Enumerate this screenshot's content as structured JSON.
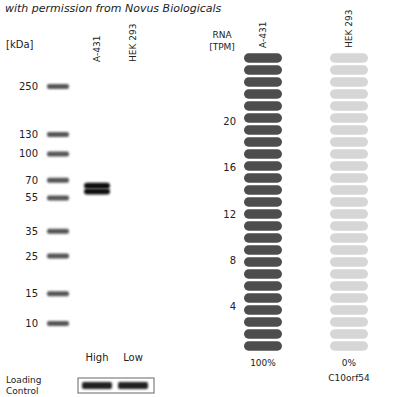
{
  "watermark": "with permission from Novus Biologicals",
  "western_blot": {
    "unit_label": "[kDa]",
    "kda_range": [
      330,
      8
    ],
    "log": true,
    "markers": [
      250,
      130,
      100,
      70,
      55,
      35,
      25,
      15,
      10
    ],
    "lanes": [
      {
        "name": "A-431",
        "level": "High",
        "bands": [
          65,
          60
        ]
      },
      {
        "name": "HEK 293",
        "level": "Low",
        "bands": []
      }
    ],
    "loading_control_label": [
      "Loading",
      "Control"
    ]
  },
  "chart_data": {
    "type": "bar",
    "y_label": [
      "RNA",
      "[TPM]"
    ],
    "categories": [
      "A-431",
      "HEK 293"
    ],
    "values": [
      26,
      0
    ],
    "percent_labels": [
      "100%",
      "0%"
    ],
    "x_label": "C10orf54",
    "color": "#4d4d4d",
    "ylim": [
      0,
      26
    ],
    "yticks": [
      4,
      8,
      12,
      16,
      20
    ],
    "tick_labels": "y"
  }
}
